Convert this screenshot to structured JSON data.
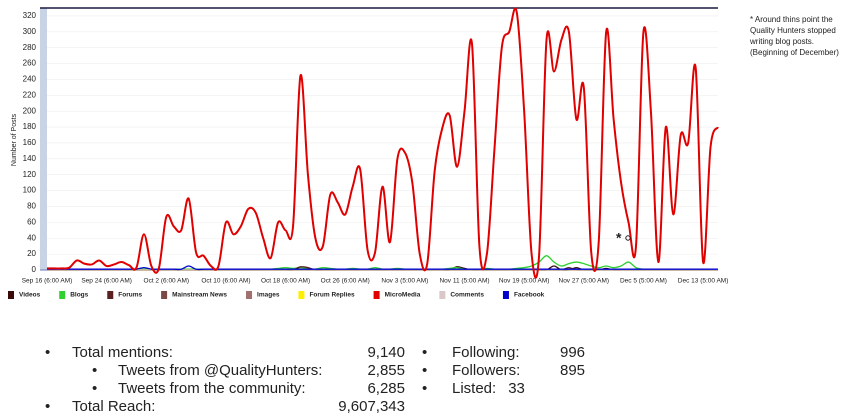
{
  "chart_data": {
    "type": "line",
    "y_label": "Number of Posts",
    "ylim": [
      0,
      330
    ],
    "yticks": [
      0,
      20,
      40,
      60,
      80,
      100,
      120,
      140,
      160,
      180,
      200,
      220,
      240,
      260,
      280,
      300,
      320
    ],
    "grid": true,
    "annotation": [
      "* Around thins point the",
      "Quality Hunters stopped",
      "writing blog posts.",
      "(Beginning of December)"
    ],
    "marker": "*",
    "categories": [
      "Sep 16 (6:00 AM)",
      null,
      null,
      null,
      null,
      null,
      null,
      null,
      "Sep 24 (6:00 AM)",
      null,
      null,
      null,
      null,
      null,
      null,
      null,
      "Oct 2 (6:00 AM)",
      null,
      null,
      null,
      null,
      null,
      null,
      null,
      "Oct 10 (6:00 AM)",
      null,
      null,
      null,
      null,
      null,
      null,
      null,
      "Oct 18 (6:00 AM)",
      null,
      null,
      null,
      null,
      null,
      null,
      null,
      "Oct 26 (6:00 AM)",
      null,
      null,
      null,
      null,
      null,
      null,
      null,
      "Nov 3 (5:00 AM)",
      null,
      null,
      null,
      null,
      null,
      null,
      null,
      "Nov 11 (5:00 AM)",
      null,
      null,
      null,
      null,
      null,
      null,
      null,
      "Nov 19 (5:00 AM)",
      null,
      null,
      null,
      null,
      null,
      null,
      null,
      "Nov 27 (5:00 AM)",
      null,
      null,
      null,
      null,
      null,
      null,
      null,
      "Dec 5 (5:00 AM)",
      null,
      null,
      null,
      null,
      null,
      null,
      null,
      "Dec 13 (5:00 AM)",
      null,
      null
    ],
    "series": [
      {
        "name": "Videos",
        "color": "#3a0a0a",
        "values": [
          0,
          0,
          0,
          0,
          0,
          0,
          0,
          0,
          0,
          0,
          0,
          0,
          0,
          0,
          0,
          0,
          0,
          0,
          0,
          0,
          0,
          0,
          0,
          0,
          0,
          0,
          0,
          0,
          0,
          0,
          0,
          0,
          0,
          0,
          0,
          0,
          0,
          0,
          0,
          0,
          0,
          0,
          0,
          0,
          0,
          0,
          0,
          0,
          0,
          0,
          0,
          0,
          0,
          0,
          0,
          4,
          2,
          0,
          0,
          0,
          0,
          0,
          0,
          0,
          0,
          0,
          0,
          0,
          5,
          0,
          0,
          3,
          0,
          0,
          0,
          2,
          0,
          0,
          0,
          0,
          0,
          0,
          0,
          0,
          0,
          0,
          0,
          0,
          0,
          0,
          0
        ]
      },
      {
        "name": "Blogs",
        "color": "#2fd02f",
        "values": [
          1,
          1,
          1,
          1,
          1,
          1,
          1,
          1,
          1,
          1,
          1,
          1,
          1,
          1,
          1,
          1,
          1,
          1,
          1,
          1,
          1,
          1,
          1,
          1,
          1,
          1,
          1,
          1,
          1,
          1,
          1,
          2,
          3,
          2,
          3,
          2,
          1,
          3,
          2,
          1,
          1,
          2,
          1,
          1,
          3,
          1,
          1,
          2,
          1,
          1,
          1,
          1,
          1,
          1,
          2,
          3,
          1,
          1,
          1,
          2,
          1,
          1,
          1,
          2,
          3,
          5,
          10,
          18,
          10,
          5,
          8,
          10,
          8,
          5,
          3,
          5,
          3,
          5,
          10,
          3,
          1,
          1,
          1,
          1,
          1,
          1,
          1,
          1,
          1,
          1,
          1
        ]
      },
      {
        "name": "Forums",
        "color": "#5a2020",
        "values": [
          0,
          0,
          0,
          0,
          0,
          0,
          0,
          0,
          0,
          0,
          0,
          0,
          0,
          0,
          0,
          0,
          0,
          0,
          0,
          0,
          0,
          0,
          0,
          0,
          0,
          0,
          0,
          0,
          0,
          0,
          0,
          0,
          0,
          0,
          4,
          3,
          0,
          0,
          0,
          0,
          0,
          0,
          0,
          0,
          0,
          0,
          0,
          0,
          0,
          0,
          0,
          0,
          0,
          0,
          0,
          0,
          0,
          0,
          0,
          0,
          0,
          0,
          0,
          0,
          0,
          0,
          0,
          0,
          0,
          0,
          3,
          0,
          0,
          0,
          0,
          0,
          0,
          0,
          0,
          0,
          0,
          0,
          0,
          0,
          0,
          0,
          0,
          0,
          0,
          0,
          0
        ]
      },
      {
        "name": "Mainstream News",
        "color": "#7a4a4a",
        "values": [
          0,
          0,
          0,
          0,
          0,
          0,
          0,
          0,
          0,
          0,
          0,
          0,
          0,
          0,
          0,
          0,
          0,
          0,
          0,
          0,
          0,
          0,
          0,
          0,
          0,
          0,
          0,
          0,
          0,
          0,
          0,
          0,
          0,
          0,
          0,
          0,
          0,
          0,
          0,
          0,
          0,
          0,
          0,
          0,
          0,
          0,
          0,
          0,
          0,
          0,
          0,
          0,
          0,
          0,
          0,
          0,
          0,
          0,
          0,
          0,
          0,
          0,
          0,
          0,
          0,
          0,
          0,
          0,
          0,
          0,
          0,
          0,
          0,
          0,
          0,
          0,
          0,
          0,
          0,
          0,
          0,
          0,
          0,
          0,
          0,
          0,
          0,
          0,
          0,
          0,
          0
        ]
      },
      {
        "name": "Images",
        "color": "#a07070",
        "values": [
          0,
          0,
          0,
          0,
          0,
          0,
          0,
          0,
          0,
          0,
          0,
          0,
          0,
          0,
          0,
          0,
          0,
          0,
          0,
          0,
          0,
          0,
          0,
          0,
          0,
          0,
          0,
          0,
          0,
          0,
          0,
          0,
          0,
          0,
          0,
          0,
          0,
          0,
          0,
          0,
          0,
          0,
          0,
          0,
          0,
          0,
          0,
          0,
          0,
          0,
          0,
          0,
          0,
          0,
          0,
          0,
          0,
          0,
          0,
          0,
          0,
          0,
          0,
          0,
          0,
          0,
          0,
          0,
          0,
          0,
          0,
          0,
          0,
          0,
          0,
          0,
          0,
          0,
          0,
          0,
          0,
          0,
          0,
          0,
          0,
          0,
          0,
          0,
          0,
          0,
          0
        ]
      },
      {
        "name": "Forum Replies",
        "color": "#ffee00",
        "values": [
          0,
          0,
          0,
          0,
          0,
          0,
          0,
          0,
          0,
          0,
          0,
          0,
          0,
          0,
          0,
          0,
          0,
          0,
          0,
          0,
          0,
          0,
          0,
          0,
          0,
          0,
          0,
          0,
          0,
          0,
          0,
          0,
          0,
          0,
          0,
          0,
          0,
          0,
          0,
          0,
          0,
          0,
          0,
          0,
          0,
          0,
          0,
          0,
          0,
          0,
          0,
          0,
          0,
          0,
          0,
          0,
          0,
          0,
          0,
          0,
          0,
          0,
          0,
          0,
          0,
          0,
          0,
          0,
          0,
          0,
          0,
          0,
          0,
          0,
          0,
          0,
          0,
          0,
          0,
          0,
          0,
          0,
          0,
          0,
          0,
          0,
          0,
          0,
          0,
          0,
          0
        ]
      },
      {
        "name": "MicroMedia",
        "color": "#e00000",
        "values": [
          2,
          2,
          2,
          3,
          12,
          8,
          7,
          12,
          5,
          7,
          10,
          6,
          3,
          45,
          5,
          2,
          67,
          55,
          50,
          90,
          22,
          18,
          5,
          5,
          60,
          45,
          55,
          77,
          72,
          40,
          15,
          60,
          50,
          55,
          245,
          120,
          40,
          30,
          95,
          85,
          70,
          105,
          127,
          25,
          22,
          105,
          35,
          140,
          148,
          110,
          20,
          8,
          125,
          178,
          195,
          130,
          200,
          285,
          30,
          20,
          150,
          280,
          300,
          325,
          200,
          20,
          18,
          290,
          250,
          290,
          300,
          190,
          230,
          22,
          35,
          300,
          190,
          110,
          60,
          30,
          300,
          200,
          10,
          180,
          70,
          170,
          160,
          255,
          10,
          155,
          180
        ]
      },
      {
        "name": "Comments",
        "color": "#d8c8c8",
        "values": [
          0,
          0,
          0,
          0,
          0,
          0,
          0,
          0,
          0,
          0,
          0,
          0,
          0,
          0,
          0,
          0,
          0,
          0,
          0,
          0,
          0,
          0,
          0,
          0,
          0,
          0,
          0,
          0,
          0,
          0,
          0,
          0,
          0,
          0,
          0,
          0,
          0,
          0,
          0,
          0,
          0,
          0,
          0,
          0,
          0,
          0,
          0,
          0,
          0,
          0,
          0,
          0,
          0,
          0,
          0,
          0,
          0,
          0,
          0,
          0,
          0,
          0,
          0,
          0,
          0,
          0,
          0,
          0,
          0,
          0,
          0,
          0,
          0,
          0,
          0,
          0,
          0,
          0,
          0,
          0,
          0,
          0,
          0,
          0,
          0,
          0,
          0,
          0,
          0,
          0,
          0
        ]
      },
      {
        "name": "Facebook",
        "color": "#0000cc",
        "values": [
          1,
          1,
          1,
          1,
          1,
          1,
          1,
          1,
          1,
          1,
          1,
          1,
          1,
          3,
          1,
          1,
          1,
          1,
          1,
          5,
          1,
          1,
          1,
          1,
          1,
          1,
          1,
          1,
          1,
          1,
          1,
          1,
          1,
          1,
          1,
          1,
          1,
          1,
          1,
          1,
          1,
          1,
          1,
          1,
          1,
          1,
          1,
          1,
          1,
          1,
          1,
          1,
          1,
          1,
          1,
          1,
          1,
          1,
          1,
          1,
          1,
          1,
          1,
          1,
          1,
          1,
          1,
          1,
          1,
          1,
          1,
          1,
          1,
          1,
          1,
          1,
          1,
          1,
          1,
          1,
          1,
          1,
          1,
          1,
          1,
          1,
          1,
          1,
          1,
          1,
          1
        ]
      }
    ]
  },
  "summary": {
    "left": [
      {
        "label": "Total mentions:",
        "value": "9,140",
        "level": 1
      },
      {
        "label": "Tweets from @QualityHunters:",
        "value": "2,855",
        "level": 2
      },
      {
        "label": "Tweets from the community:",
        "value": "6,285",
        "level": 2
      },
      {
        "label": "Total Reach:",
        "value": "9,607,343",
        "level": 1
      }
    ],
    "right": [
      {
        "label": "Following:",
        "value": "996"
      },
      {
        "label": "Followers:",
        "value": "895"
      },
      {
        "label": "Listed:",
        "value": "33"
      }
    ]
  }
}
